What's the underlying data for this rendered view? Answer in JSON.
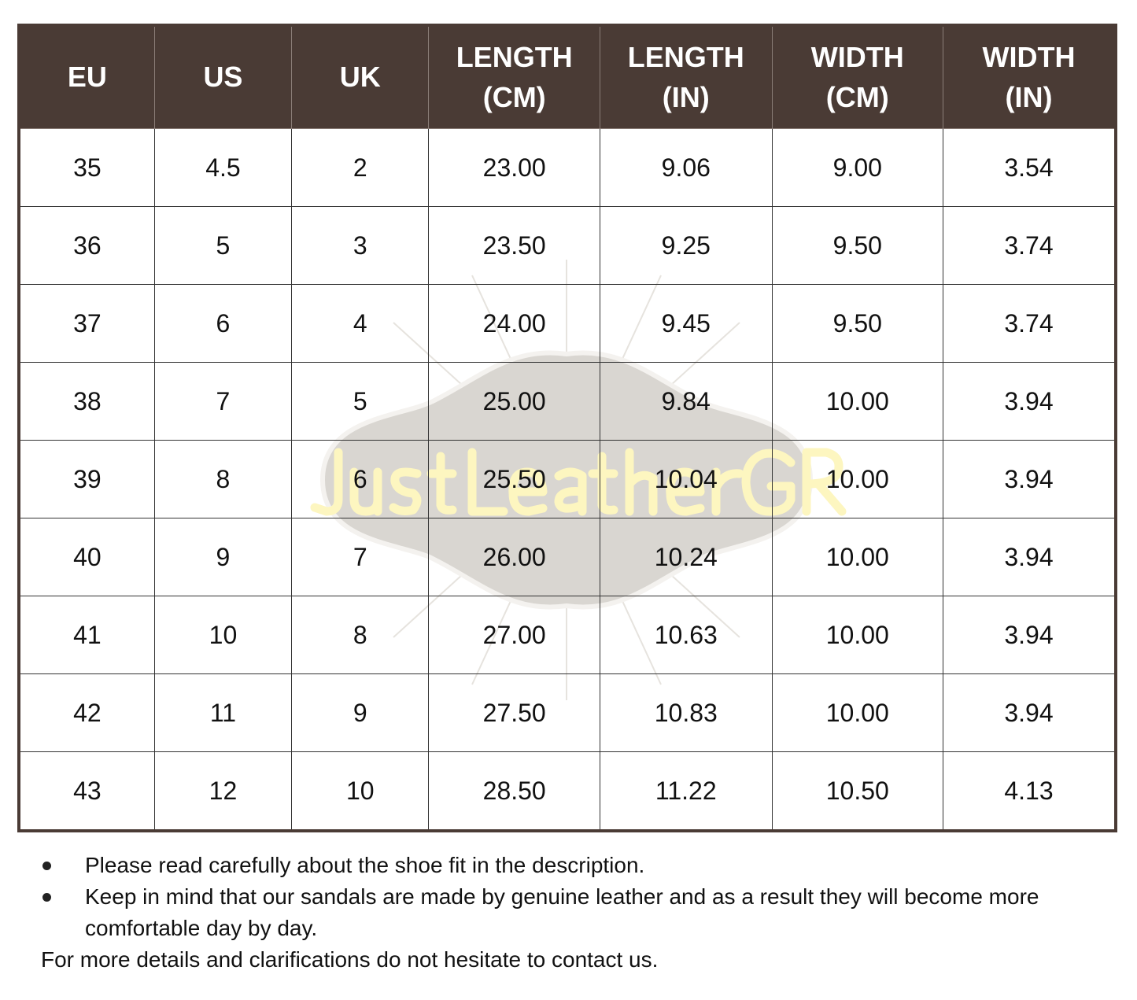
{
  "watermark": {
    "text": "JustLeatherGR",
    "text_color": "#fdf6c0",
    "badge_color": "#d9d6d1"
  },
  "colors": {
    "header_bg": "#4a3b35",
    "header_text": "#ffffff"
  },
  "table": {
    "headers": [
      {
        "line1": "EU",
        "line2": ""
      },
      {
        "line1": "US",
        "line2": ""
      },
      {
        "line1": "UK",
        "line2": ""
      },
      {
        "line1": "LENGTH",
        "line2": "(CM)"
      },
      {
        "line1": "LENGTH",
        "line2": "(IN)"
      },
      {
        "line1": "WIDTH",
        "line2": "(CM)"
      },
      {
        "line1": "WIDTH",
        "line2": "(IN)"
      }
    ],
    "rows": [
      [
        "35",
        "4.5",
        "2",
        "23.00",
        "9.06",
        "9.00",
        "3.54"
      ],
      [
        "36",
        "5",
        "3",
        "23.50",
        "9.25",
        "9.50",
        "3.74"
      ],
      [
        "37",
        "6",
        "4",
        "24.00",
        "9.45",
        "9.50",
        "3.74"
      ],
      [
        "38",
        "7",
        "5",
        "25.00",
        "9.84",
        "10.00",
        "3.94"
      ],
      [
        "39",
        "8",
        "6",
        "25.50",
        "10.04",
        "10.00",
        "3.94"
      ],
      [
        "40",
        "9",
        "7",
        "26.00",
        "10.24",
        "10.00",
        "3.94"
      ],
      [
        "41",
        "10",
        "8",
        "27.00",
        "10.63",
        "10.00",
        "3.94"
      ],
      [
        "42",
        "11",
        "9",
        "27.50",
        "10.83",
        "10.00",
        "3.94"
      ],
      [
        "43",
        "12",
        "10",
        "28.50",
        "11.22",
        "10.50",
        "4.13"
      ]
    ]
  },
  "notes": {
    "bullets": [
      "Please read carefully about the shoe fit in the description.",
      "Keep in mind that our sandals are made by genuine leather and as a result they will become more comfortable day by day."
    ],
    "footer": "For more details and clarifications do not hesitate to contact us."
  }
}
